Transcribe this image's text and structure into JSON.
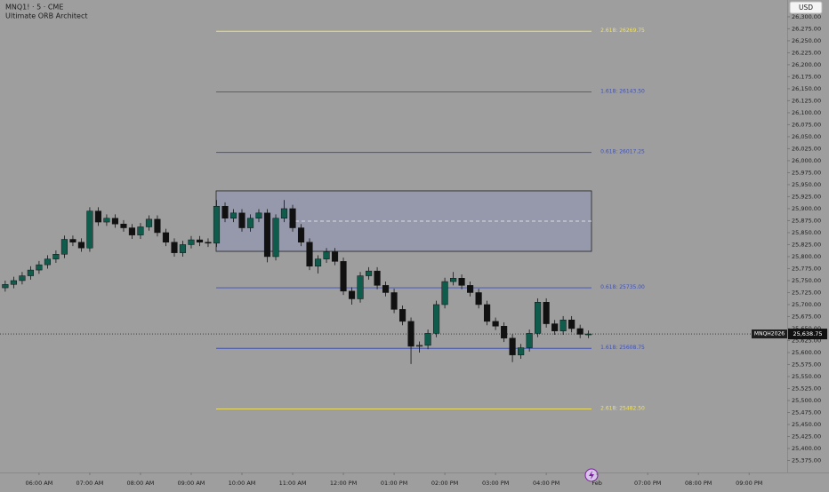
{
  "chart_data": {
    "type": "candlestick",
    "title": "MNQ1! · 5 · CME",
    "subtitle": "Ultimate ORB Architect",
    "currency": "USD",
    "up_color": "#0f5c4c",
    "down_color": "#111111",
    "grid": false,
    "x": [
      -0.667,
      -0.5,
      -0.333,
      -0.167,
      0,
      0.167,
      0.333,
      0.5,
      0.667,
      0.833,
      1,
      1.167,
      1.333,
      1.5,
      1.667,
      1.833,
      2,
      2.167,
      2.333,
      2.5,
      2.667,
      2.833,
      3,
      3.167,
      3.333,
      3.5,
      3.667,
      3.833,
      4,
      4.167,
      4.333,
      4.5,
      4.667,
      4.833,
      5,
      5.167,
      5.333,
      5.5,
      5.667,
      5.833,
      6,
      6.167,
      6.333,
      6.5,
      6.667,
      6.833,
      7,
      7.167,
      7.333,
      7.5,
      7.667,
      7.833,
      8,
      8.167,
      8.333,
      8.5,
      8.667,
      8.833,
      9,
      9.167,
      9.333,
      9.5,
      9.667,
      9.833,
      10,
      10.167,
      10.333,
      10.5,
      10.667,
      10.833
    ],
    "open": [
      25735,
      25742,
      25750,
      25760,
      25772,
      25783,
      25795,
      25805,
      25836,
      25830,
      25818,
      25895,
      25872,
      25880,
      25868,
      25860,
      25845,
      25862,
      25878,
      25850,
      25830,
      25808,
      25825,
      25835,
      25830,
      25828,
      25905,
      25880,
      25891,
      25860,
      25880,
      25891,
      25800,
      25880,
      25900,
      25860,
      25830,
      25780,
      25795,
      25810,
      25790,
      25728,
      25712,
      25760,
      25770,
      25740,
      25725,
      25690,
      25665,
      25613,
      25615,
      25640,
      25700,
      25748,
      25755,
      25740,
      25725,
      25700,
      25665,
      25655,
      25630,
      25595,
      25610,
      25640,
      25705,
      25660,
      25645,
      25668,
      25650,
      25638
    ],
    "high": [
      25750,
      25758,
      25768,
      25780,
      25791,
      25803,
      25813,
      25844,
      25844,
      25838,
      25903,
      25903,
      25888,
      25888,
      25876,
      25868,
      25870,
      25886,
      25886,
      25858,
      25838,
      25833,
      25843,
      25843,
      25838,
      25918,
      25913,
      25899,
      25899,
      25888,
      25899,
      25899,
      25888,
      25918,
      25908,
      25868,
      25838,
      25803,
      25818,
      25818,
      25798,
      25736,
      25768,
      25778,
      25778,
      25748,
      25733,
      25698,
      25673,
      25623,
      25648,
      25708,
      25756,
      25768,
      25763,
      25748,
      25733,
      25708,
      25673,
      25663,
      25638,
      25618,
      25648,
      25713,
      25713,
      25668,
      25676,
      25676,
      25658,
      25646
    ],
    "low": [
      25727,
      25734,
      25742,
      25752,
      25764,
      25775,
      25787,
      25797,
      25822,
      25810,
      25810,
      25864,
      25864,
      25860,
      25852,
      25837,
      25837,
      25854,
      25842,
      25822,
      25800,
      25800,
      25817,
      25822,
      25820,
      25820,
      25872,
      25872,
      25852,
      25852,
      25872,
      25788,
      25792,
      25872,
      25852,
      25822,
      25772,
      25765,
      25787,
      25782,
      25720,
      25700,
      25704,
      25752,
      25732,
      25717,
      25682,
      25657,
      25576,
      25600,
      25607,
      25632,
      25692,
      25740,
      25732,
      25717,
      25692,
      25657,
      25647,
      25622,
      25580,
      25587,
      25602,
      25632,
      25652,
      25637,
      25637,
      25642,
      25630,
      25630
    ],
    "close": [
      25742,
      25750,
      25760,
      25772,
      25783,
      25795,
      25805,
      25836,
      25830,
      25818,
      25895,
      25872,
      25880,
      25868,
      25860,
      25845,
      25862,
      25878,
      25850,
      25830,
      25808,
      25825,
      25835,
      25830,
      25828,
      25905,
      25880,
      25891,
      25860,
      25880,
      25891,
      25800,
      25880,
      25900,
      25860,
      25830,
      25780,
      25795,
      25810,
      25790,
      25728,
      25712,
      25760,
      25770,
      25740,
      25725,
      25690,
      25665,
      25613,
      25615,
      25640,
      25700,
      25748,
      25755,
      25740,
      25725,
      25700,
      25665,
      25655,
      25630,
      25595,
      25610,
      25640,
      25705,
      25660,
      25645,
      25668,
      25650,
      25638,
      25638.75
    ],
    "range_box": {
      "high": 25937,
      "low": 25811,
      "mid": 25874
    },
    "levels": [
      {
        "label": "2.618: 26269.75",
        "value": 26269.75,
        "color": "#f2e35a"
      },
      {
        "label": "1.618: 26143.50",
        "value": 26143.5,
        "color": "#3f51b5"
      },
      {
        "label": "0.618: 26017.25",
        "value": 26017.25,
        "color": "#3f51b5"
      },
      {
        "label": "0.618: 25735.00",
        "value": 25735,
        "color": "#3f51b5"
      },
      {
        "label": "1.618: 25608.75",
        "value": 25608.75,
        "color": "#3f51b5"
      },
      {
        "label": "2.618: 25482.50",
        "value": 25482.5,
        "color": "#f2e35a"
      }
    ],
    "last_price": {
      "symbol": "MNQH2026",
      "label": "25,638.75",
      "value": 25638.75
    },
    "xlim": [
      -0.77,
      14.75
    ],
    "xticks": [
      {
        "value": 0,
        "label": "06:00 AM"
      },
      {
        "value": 1,
        "label": "07:00 AM"
      },
      {
        "value": 2,
        "label": "08:00 AM"
      },
      {
        "value": 3,
        "label": "09:00 AM"
      },
      {
        "value": 4,
        "label": "10:00 AM"
      },
      {
        "value": 5,
        "label": "11:00 AM"
      },
      {
        "value": 6,
        "label": "12:00 PM"
      },
      {
        "value": 7,
        "label": "01:00 PM"
      },
      {
        "value": 8,
        "label": "02:00 PM"
      },
      {
        "value": 9,
        "label": "03:00 PM"
      },
      {
        "value": 10,
        "label": "04:00 PM"
      },
      {
        "value": 11,
        "label": "Feb"
      },
      {
        "value": 12,
        "label": "07:00 PM"
      },
      {
        "value": 13,
        "label": "08:00 PM"
      },
      {
        "value": 14,
        "label": "09:00 PM"
      }
    ],
    "ylim": [
      25350,
      26335
    ],
    "yticks": [
      {
        "value": 26300,
        "label": "26,300.00"
      },
      {
        "value": 26275,
        "label": "26,275.00"
      },
      {
        "value": 26250,
        "label": "26,250.00"
      },
      {
        "value": 26225,
        "label": "26,225.00"
      },
      {
        "value": 26200,
        "label": "26,200.00"
      },
      {
        "value": 26175,
        "label": "26,175.00"
      },
      {
        "value": 26150,
        "label": "26,150.00"
      },
      {
        "value": 26125,
        "label": "26,125.00"
      },
      {
        "value": 26100,
        "label": "26,100.00"
      },
      {
        "value": 26075,
        "label": "26,075.00"
      },
      {
        "value": 26050,
        "label": "26,050.00"
      },
      {
        "value": 26025,
        "label": "26,025.00"
      },
      {
        "value": 26000,
        "label": "26,000.00"
      },
      {
        "value": 25975,
        "label": "25,975.00"
      },
      {
        "value": 25950,
        "label": "25,950.00"
      },
      {
        "value": 25925,
        "label": "25,925.00"
      },
      {
        "value": 25900,
        "label": "25,900.00"
      },
      {
        "value": 25875,
        "label": "25,875.00"
      },
      {
        "value": 25850,
        "label": "25,850.00"
      },
      {
        "value": 25825,
        "label": "25,825.00"
      },
      {
        "value": 25800,
        "label": "25,800.00"
      },
      {
        "value": 25775,
        "label": "25,775.00"
      },
      {
        "value": 25750,
        "label": "25,750.00"
      },
      {
        "value": 25725,
        "label": "25,725.00"
      },
      {
        "value": 25700,
        "label": "25,700.00"
      },
      {
        "value": 25675,
        "label": "25,675.00"
      },
      {
        "value": 25650,
        "label": "25,650.00"
      },
      {
        "value": 25625,
        "label": "25,625.00"
      },
      {
        "value": 25600,
        "label": "25,600.00"
      },
      {
        "value": 25575,
        "label": "25,575.00"
      },
      {
        "value": 25550,
        "label": "25,550.00"
      },
      {
        "value": 25525,
        "label": "25,525.00"
      },
      {
        "value": 25500,
        "label": "25,500.00"
      },
      {
        "value": 25475,
        "label": "25,475.00"
      },
      {
        "value": 25450,
        "label": "25,450.00"
      },
      {
        "value": 25425,
        "label": "25,425.00"
      },
      {
        "value": 25400,
        "label": "25,400.00"
      },
      {
        "value": 25375,
        "label": "25,375.00"
      }
    ]
  }
}
